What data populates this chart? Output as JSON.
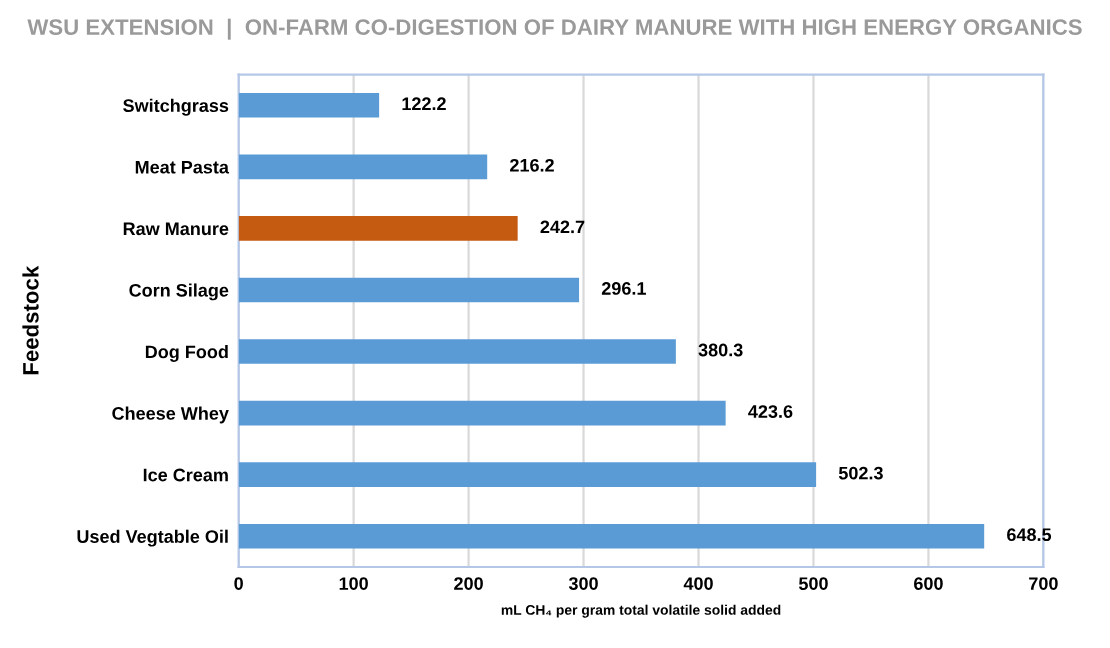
{
  "chart_data": {
    "type": "bar",
    "orientation": "horizontal",
    "title": "WSU EXTENSION  |  ON-FARM CO-DIGESTION OF DAIRY MANURE WITH HIGH ENERGY ORGANICS",
    "categories": [
      "Switchgrass",
      "Meat Pasta",
      "Raw Manure",
      "Corn Silage",
      "Dog Food",
      "Cheese Whey",
      "Ice Cream",
      "Used Vegtable Oil"
    ],
    "values": [
      122.2,
      216.2,
      242.7,
      296.1,
      380.3,
      423.6,
      502.3,
      648.5
    ],
    "colors": [
      "#5b9bd5",
      "#5b9bd5",
      "#c55a11",
      "#5b9bd5",
      "#5b9bd5",
      "#5b9bd5",
      "#5b9bd5",
      "#5b9bd5"
    ],
    "data_labels": true,
    "xlabel": "mL CH₄ per gram total volatile solid added",
    "ylabel": "Feedstock",
    "xlim": [
      0,
      700
    ],
    "xticks": [
      0,
      100,
      200,
      300,
      400,
      500,
      600,
      700
    ],
    "grid": "x"
  }
}
